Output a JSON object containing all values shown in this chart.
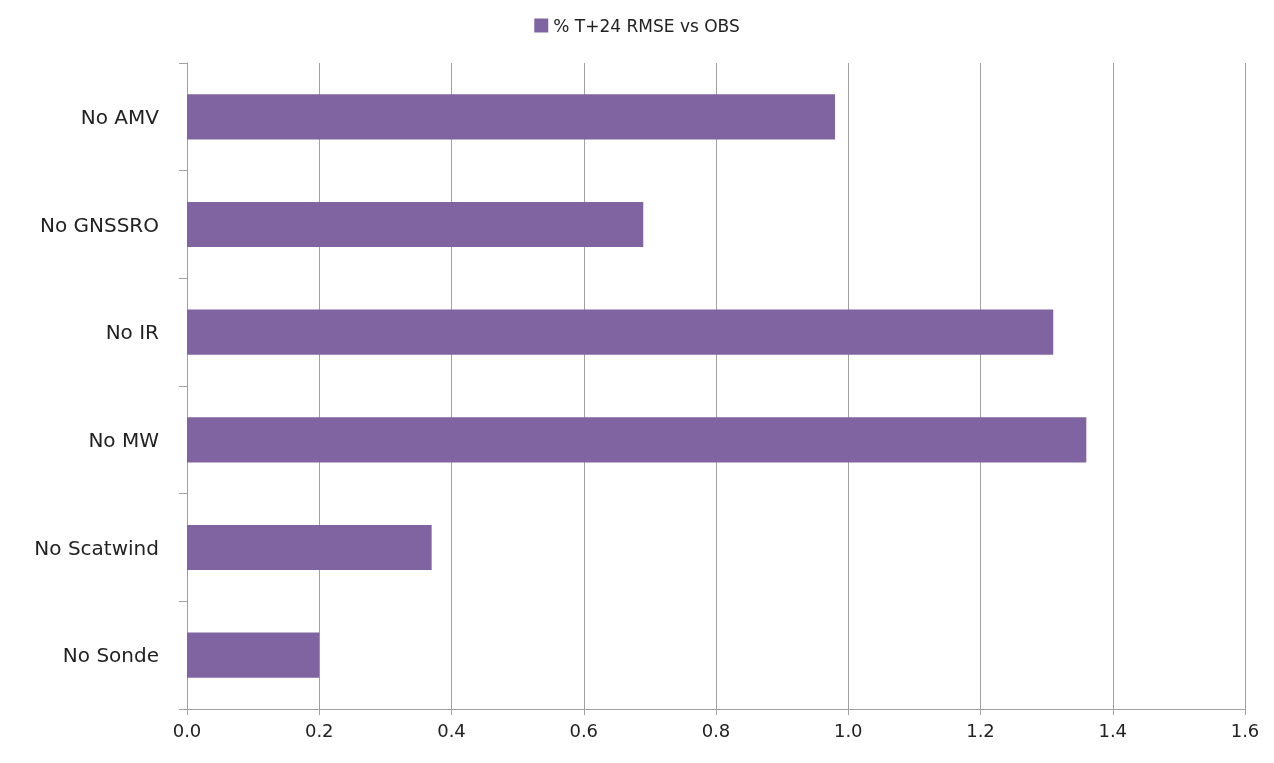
{
  "chart_data": {
    "type": "bar",
    "orientation": "horizontal",
    "categories": [
      "No AMV",
      "No GNSSRO",
      "No IR",
      "No MW",
      "No Scatwind",
      "No Sonde"
    ],
    "series": [
      {
        "name": "% T+24 RMSE vs OBS",
        "color": "#8064a2",
        "values": [
          0.98,
          0.69,
          1.31,
          1.36,
          0.37,
          0.2
        ]
      }
    ],
    "xlim": [
      0,
      1.6
    ],
    "xticks": [
      {
        "value": 0,
        "label": "0.0"
      },
      0.2,
      0.4,
      0.6,
      0.8,
      {
        "value": 1,
        "label": "1.0"
      },
      1.2,
      1.4,
      1.6
    ],
    "grid": "x",
    "legend": "top"
  }
}
